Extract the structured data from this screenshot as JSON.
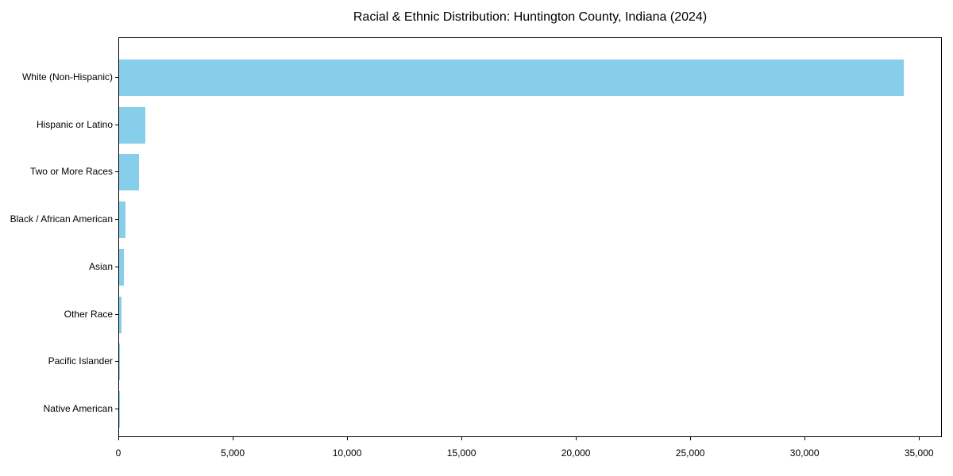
{
  "figure": {
    "background": "#ffffff",
    "text_color": "#000000",
    "spine_color": "#000000"
  },
  "chart_data": {
    "type": "bar",
    "orientation": "horizontal",
    "title": "Racial & Ethnic Distribution: Huntington County, Indiana (2024)",
    "categories": [
      "White (Non-Hispanic)",
      "Hispanic or Latino",
      "Two or More Races",
      "Black / African American",
      "Asian",
      "Other Race",
      "Pacific Islander",
      "Native American"
    ],
    "values": [
      34300,
      1140,
      880,
      280,
      220,
      105,
      25,
      15
    ],
    "xlabel": "",
    "ylabel": "",
    "xlim": [
      0,
      36000
    ],
    "xticks": [
      0,
      5000,
      10000,
      15000,
      20000,
      25000,
      30000,
      35000
    ],
    "xtick_labels": [
      "0",
      "5,000",
      "10,000",
      "15,000",
      "20,000",
      "25,000",
      "30,000",
      "35,000"
    ],
    "bar_color": "#87CEEB",
    "grid": false,
    "legend": null,
    "sort_order": "descending"
  }
}
